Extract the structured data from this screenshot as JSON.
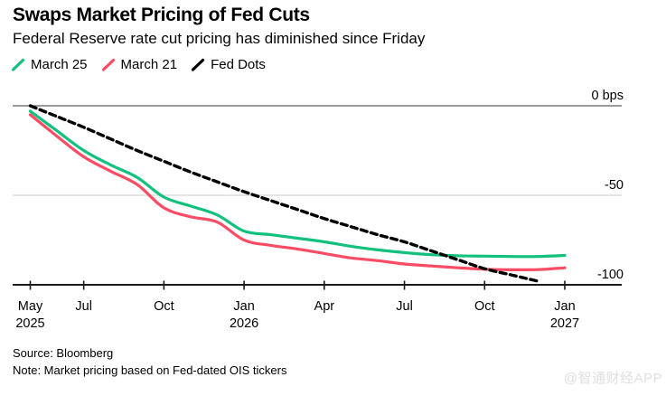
{
  "header": {
    "title": "Swaps Market Pricing of Fed Cuts",
    "subtitle": "Federal Reserve rate cut pricing has diminished since Friday"
  },
  "footer": {
    "source": "Source: Bloomberg",
    "note": "Note: Market pricing based on Fed-dated OIS tickers",
    "watermark": "@智通财经APP"
  },
  "chart_data": {
    "type": "line",
    "unit": "bps",
    "title": "Swaps Market Pricing of Fed Cuts",
    "legend_position": "top-left",
    "grid": {
      "zero_line_color": "#7a7a7a",
      "grid_color": "#d8d8d8",
      "axis_color": "#1a1a1a"
    },
    "ylim": [
      -100,
      0
    ],
    "x": [
      "May 2025",
      "Jun 2025",
      "Jul 2025",
      "Aug 2025",
      "Sep 2025",
      "Oct 2025",
      "Nov 2025",
      "Dec 2025",
      "Jan 2026",
      "Feb 2026",
      "Mar 2026",
      "Apr 2026",
      "May 2026",
      "Jun 2026",
      "Jul 2026",
      "Aug 2026",
      "Sep 2026",
      "Oct 2026",
      "Nov 2026",
      "Dec 2026",
      "Jan 2027"
    ],
    "x_ticks": [
      {
        "month_index": 0,
        "label": "May",
        "sublabel": "2025"
      },
      {
        "month_index": 2,
        "label": "Jul"
      },
      {
        "month_index": 5,
        "label": "Oct"
      },
      {
        "month_index": 8,
        "label": "Jan",
        "sublabel": "2026"
      },
      {
        "month_index": 11,
        "label": "Apr"
      },
      {
        "month_index": 14,
        "label": "Jul"
      },
      {
        "month_index": 17,
        "label": "Oct"
      },
      {
        "month_index": 20,
        "label": "Jan",
        "sublabel": "2027"
      }
    ],
    "y_ticks": [
      {
        "value": 0,
        "label": "0 bps"
      },
      {
        "value": -50,
        "label": "-50"
      },
      {
        "value": -100,
        "label": "-100"
      }
    ],
    "series": [
      {
        "name": "March 25",
        "color": "#12c17e",
        "style": "solid",
        "values": [
          -3,
          -14,
          -25,
          -33,
          -40,
          -51,
          -56,
          -61,
          -70,
          -72,
          -74,
          -76,
          -78.5,
          -80.5,
          -82,
          -83.2,
          -83.8,
          -84,
          -84.2,
          -84.2,
          -83.6
        ]
      },
      {
        "name": "March 21",
        "color": "#fa4d64",
        "style": "solid",
        "values": [
          -5,
          -17,
          -28.5,
          -36.5,
          -44,
          -57,
          -62,
          -65,
          -75,
          -78,
          -80,
          -82.5,
          -85,
          -86.5,
          -88.4,
          -89.5,
          -90.5,
          -91.3,
          -91.6,
          -91.5,
          -90.5
        ]
      },
      {
        "name": "Fed Dots",
        "color": "#000000",
        "style": "dashed",
        "values": [
          0,
          -6,
          -12,
          -18.5,
          -25,
          -31,
          -37,
          -42.5,
          -48,
          -53,
          -58,
          -63,
          -67.5,
          -72,
          -76,
          -81,
          -86,
          -91,
          -94.5,
          -98,
          null
        ]
      }
    ]
  }
}
